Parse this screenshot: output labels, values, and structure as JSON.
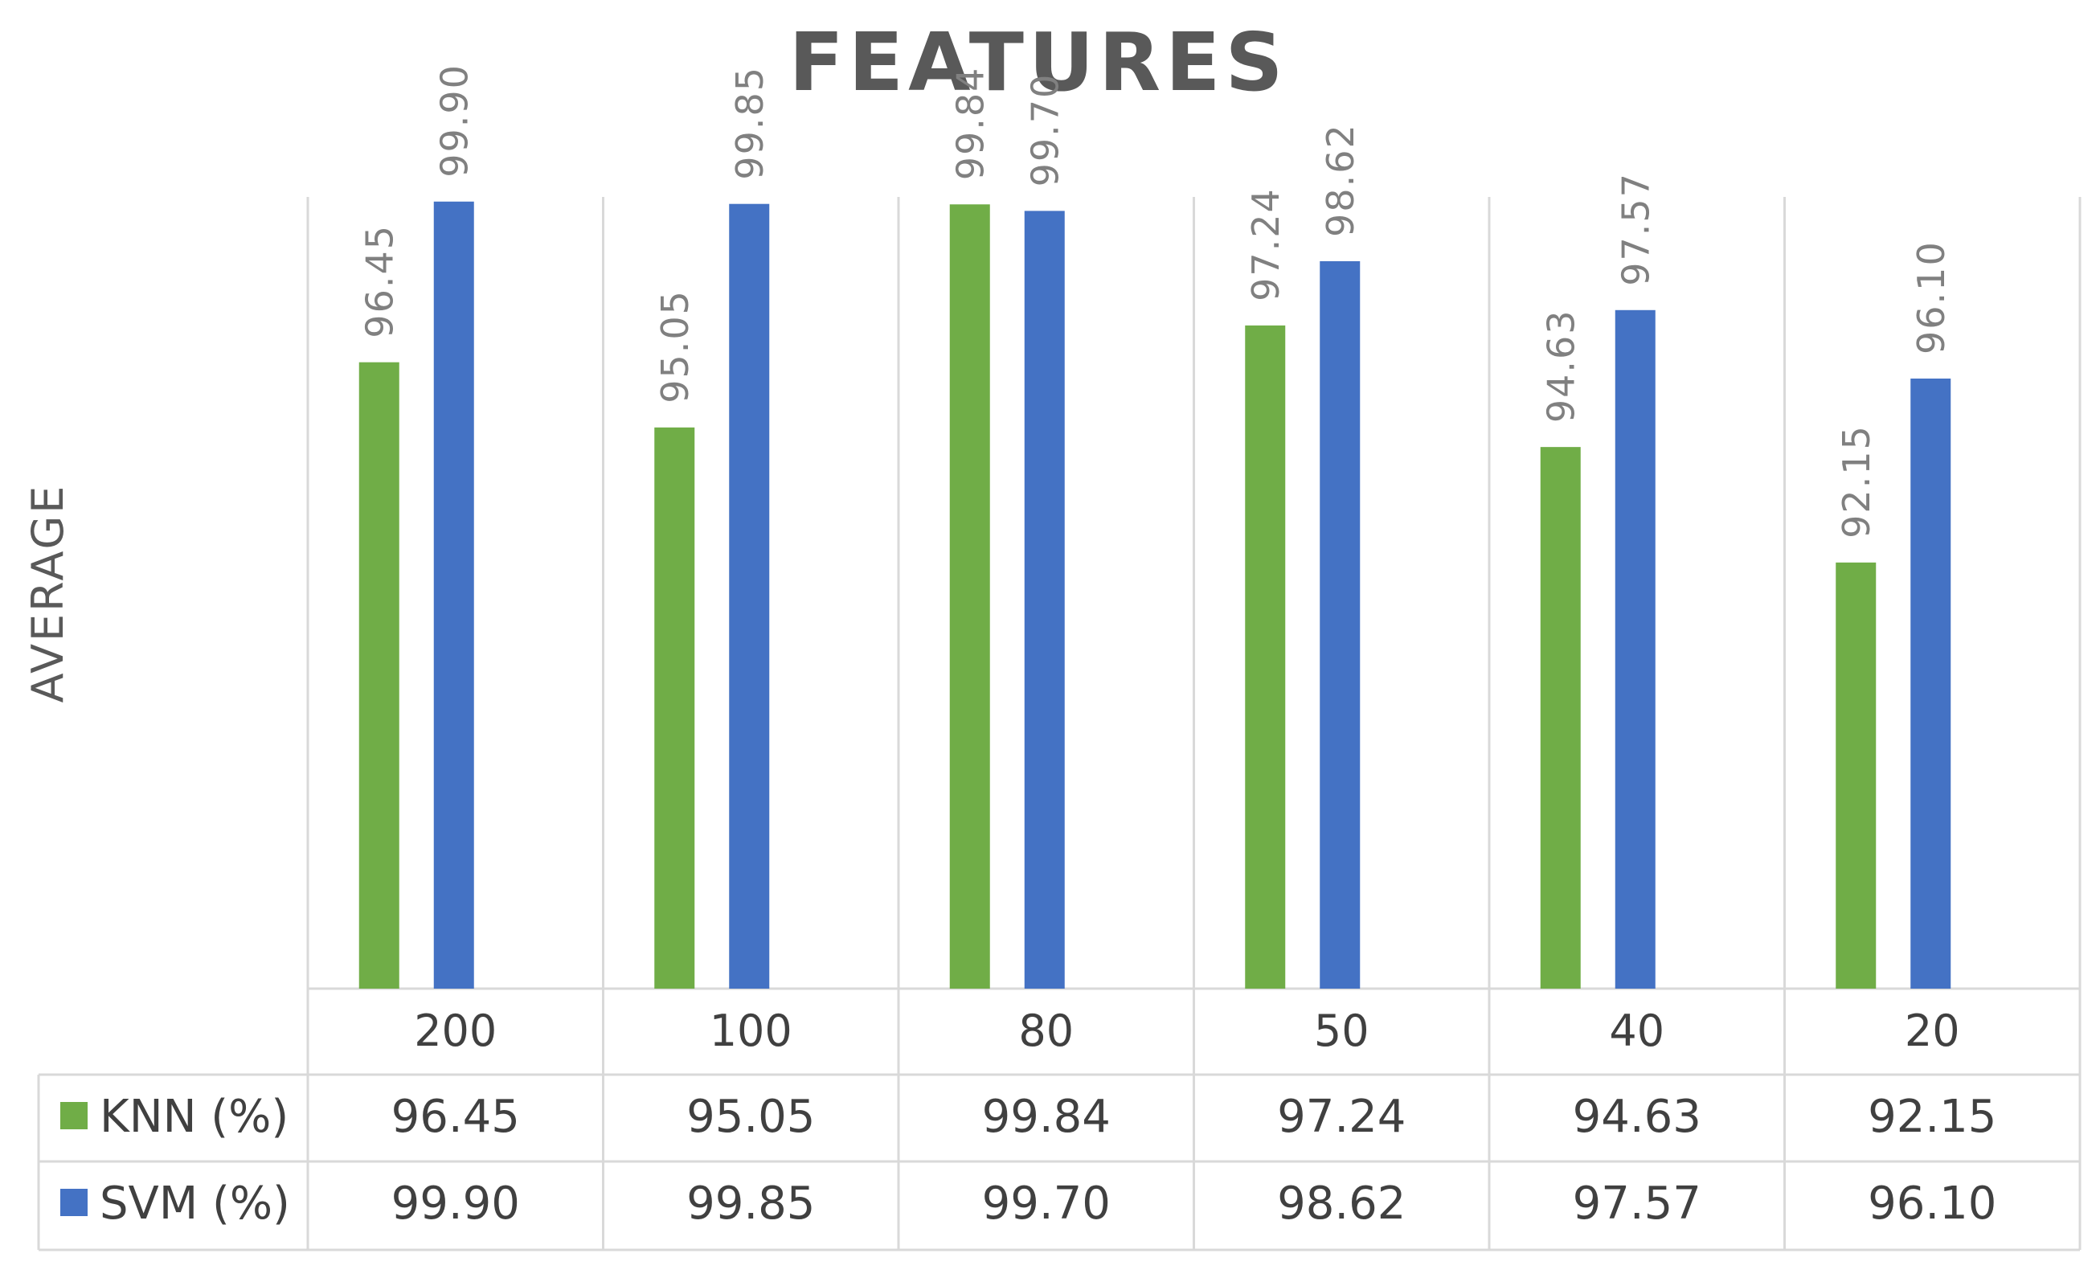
{
  "chart_data": {
    "type": "bar",
    "title": "FEATURES",
    "xlabel": "",
    "ylabel": "AVERAGE",
    "ylim": [
      83,
      100
    ],
    "categories": [
      "200",
      "100",
      "80",
      "50",
      "40",
      "20"
    ],
    "series": [
      {
        "name": "KNN (%)",
        "color": "#70ad47",
        "values": [
          96.45,
          95.05,
          99.84,
          97.24,
          94.63,
          92.15
        ]
      },
      {
        "name": "SVM (%)",
        "color": "#4472c4",
        "values": [
          99.9,
          99.85,
          99.7,
          98.62,
          97.57,
          96.1
        ]
      }
    ],
    "data_labels": {
      "KNN (%)": [
        "96.45",
        "95.05",
        "99.84",
        "97.24",
        "94.63",
        "92.15"
      ],
      "SVM (%)": [
        "99.90",
        "99.85",
        "99.70",
        "98.62",
        "97.57",
        "96.10"
      ]
    },
    "grid": true,
    "legend": "data-table"
  }
}
